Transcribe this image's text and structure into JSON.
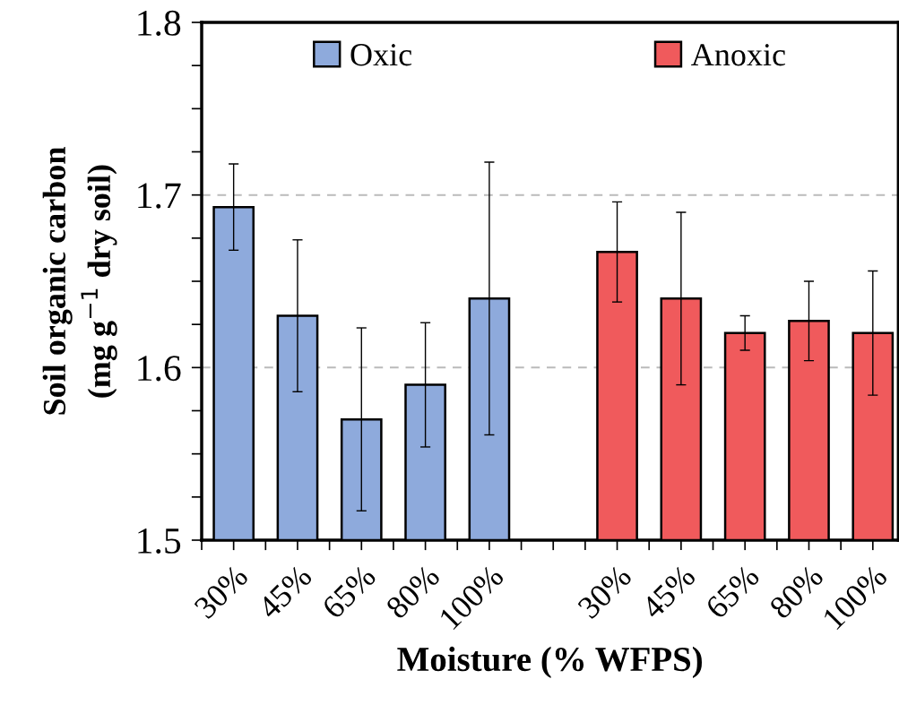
{
  "chart_data": {
    "type": "bar",
    "xlabel": "Moisture (% WFPS)",
    "ylabel": "Soil organic carbon\n(mg g$^{−1}$ dry soil)",
    "categories": [
      "30%",
      "45%",
      "65%",
      "80%",
      "100%",
      null,
      "30%",
      "45%",
      "65%",
      "80%",
      "100%"
    ],
    "series": [
      {
        "name": "Oxic",
        "color": "#8eaadc",
        "values": [
          1.693,
          1.63,
          1.57,
          1.59,
          1.64,
          null,
          null,
          null,
          null,
          null,
          null
        ],
        "errors": [
          0.025,
          0.044,
          0.053,
          0.036,
          0.079,
          null,
          null,
          null,
          null,
          null,
          null
        ]
      },
      {
        "name": "Anoxic",
        "color": "#f05a5c",
        "values": [
          null,
          null,
          null,
          null,
          null,
          null,
          1.667,
          1.64,
          1.62,
          1.627,
          1.62
        ],
        "errors": [
          null,
          null,
          null,
          null,
          null,
          null,
          0.029,
          0.05,
          0.01,
          0.023,
          0.036
        ]
      }
    ],
    "ylim": [
      1.5,
      1.8
    ],
    "yticks": [
      1.5,
      {
        "value": 1.525,
        "label": null
      },
      {
        "value": 1.55,
        "label": null
      },
      {
        "value": 1.575,
        "label": null
      },
      1.6,
      {
        "value": 1.625,
        "label": null
      },
      {
        "value": 1.65,
        "label": null
      },
      {
        "value": 1.675,
        "label": null
      },
      1.7,
      {
        "value": 1.725,
        "label": null
      },
      {
        "value": 1.75,
        "label": null
      },
      {
        "value": 1.775,
        "label": null
      },
      1.8
    ],
    "grid": "y",
    "legend": "top"
  }
}
